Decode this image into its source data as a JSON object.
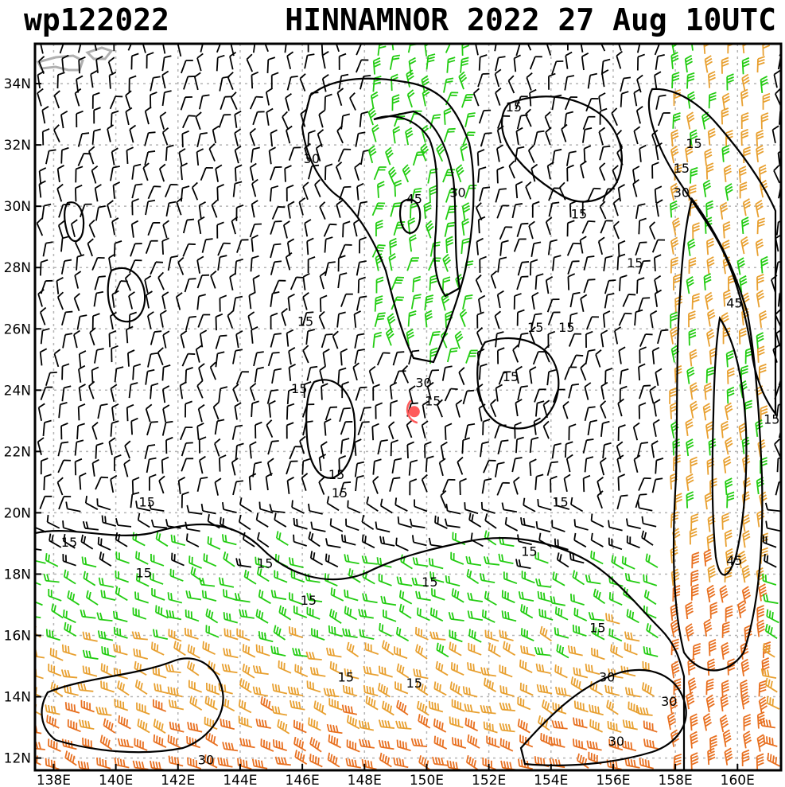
{
  "title": {
    "storm_id": "wp122022",
    "storm_info": "HINNAMNOR 2022 27 Aug 10UTC"
  },
  "map": {
    "lon_range": [
      137.4,
      161.4
    ],
    "lat_range": [
      11.6,
      35.3
    ],
    "lon_ticks": [
      {
        "value": 138,
        "label": "138E"
      },
      {
        "value": 140,
        "label": "140E"
      },
      {
        "value": 142,
        "label": "142E"
      },
      {
        "value": 144,
        "label": "144E"
      },
      {
        "value": 146,
        "label": "146E"
      },
      {
        "value": 148,
        "label": "148E"
      },
      {
        "value": 150,
        "label": "150E"
      },
      {
        "value": 152,
        "label": "152E"
      },
      {
        "value": 154,
        "label": "154E"
      },
      {
        "value": 156,
        "label": "156E"
      },
      {
        "value": 158,
        "label": "158E"
      },
      {
        "value": 160,
        "label": "160E"
      }
    ],
    "lat_ticks": [
      {
        "value": 12,
        "label": "12N"
      },
      {
        "value": 14,
        "label": "14N"
      },
      {
        "value": 16,
        "label": "16N"
      },
      {
        "value": 18,
        "label": "18N"
      },
      {
        "value": 20,
        "label": "20N"
      },
      {
        "value": 22,
        "label": "22N"
      },
      {
        "value": 24,
        "label": "24N"
      },
      {
        "value": 26,
        "label": "26N"
      },
      {
        "value": 28,
        "label": "28N"
      },
      {
        "value": 30,
        "label": "30N"
      },
      {
        "value": 32,
        "label": "32N"
      },
      {
        "value": 34,
        "label": "34N"
      }
    ],
    "grid": true,
    "storm_center": {
      "lon": 149.6,
      "lat": 23.3,
      "color": "#ff5a5a"
    },
    "wind_colors": {
      "calm": "#000000",
      "moderate": "#22cc11",
      "strong": "#e8a030",
      "intense": "#e87020"
    },
    "contour_color": "#000000",
    "contour_labels": [
      {
        "text": "30",
        "lon": 146.3,
        "lat": 31.4
      },
      {
        "text": "45",
        "lon": 149.6,
        "lat": 30.1
      },
      {
        "text": "30",
        "lon": 151.0,
        "lat": 30.3
      },
      {
        "text": "15",
        "lon": 152.8,
        "lat": 33.1
      },
      {
        "text": "15",
        "lon": 154.9,
        "lat": 29.6
      },
      {
        "text": "15",
        "lon": 156.7,
        "lat": 28.0
      },
      {
        "text": "15",
        "lon": 158.6,
        "lat": 31.9
      },
      {
        "text": "15",
        "lon": 158.2,
        "lat": 31.1
      },
      {
        "text": "30",
        "lon": 158.2,
        "lat": 30.3
      },
      {
        "text": "45",
        "lon": 159.9,
        "lat": 26.7
      },
      {
        "text": "15",
        "lon": 161.1,
        "lat": 22.9
      },
      {
        "text": "45",
        "lon": 159.9,
        "lat": 18.3
      },
      {
        "text": "15",
        "lon": 146.1,
        "lat": 26.1
      },
      {
        "text": "15",
        "lon": 153.5,
        "lat": 25.9
      },
      {
        "text": "15",
        "lon": 154.5,
        "lat": 25.9
      },
      {
        "text": "15",
        "lon": 145.9,
        "lat": 23.9
      },
      {
        "text": "30",
        "lon": 149.9,
        "lat": 24.1
      },
      {
        "text": "15",
        "lon": 150.2,
        "lat": 23.5
      },
      {
        "text": "15",
        "lon": 152.7,
        "lat": 24.3
      },
      {
        "text": "15",
        "lon": 147.1,
        "lat": 21.1
      },
      {
        "text": "15",
        "lon": 147.2,
        "lat": 20.5
      },
      {
        "text": "15",
        "lon": 141.0,
        "lat": 20.2
      },
      {
        "text": "15",
        "lon": 154.3,
        "lat": 20.2
      },
      {
        "text": "15",
        "lon": 138.5,
        "lat": 18.9
      },
      {
        "text": "15",
        "lon": 140.9,
        "lat": 17.9
      },
      {
        "text": "15",
        "lon": 144.8,
        "lat": 18.2
      },
      {
        "text": "15",
        "lon": 153.3,
        "lat": 18.6
      },
      {
        "text": "15",
        "lon": 150.1,
        "lat": 17.6
      },
      {
        "text": "15",
        "lon": 146.2,
        "lat": 17.0
      },
      {
        "text": "15",
        "lon": 155.5,
        "lat": 16.1
      },
      {
        "text": "15",
        "lon": 147.4,
        "lat": 14.5
      },
      {
        "text": "15",
        "lon": 149.6,
        "lat": 14.3
      },
      {
        "text": "30",
        "lon": 155.8,
        "lat": 14.5
      },
      {
        "text": "30",
        "lon": 157.8,
        "lat": 13.7
      },
      {
        "text": "30",
        "lon": 156.1,
        "lat": 12.4
      },
      {
        "text": "30",
        "lon": 142.9,
        "lat": 11.8
      }
    ]
  }
}
